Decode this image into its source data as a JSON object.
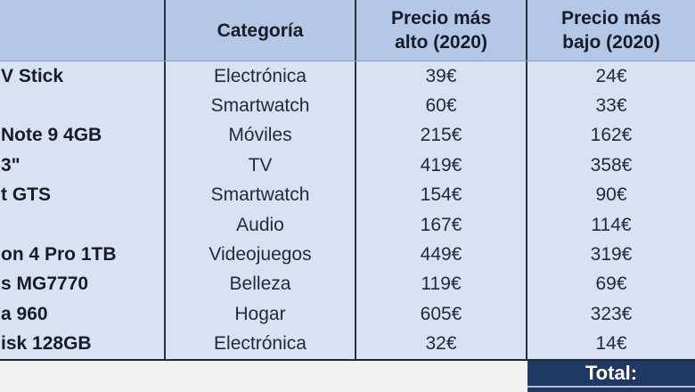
{
  "page": {
    "background": "#f2f1ef"
  },
  "table": {
    "header": {
      "product": "",
      "category": "Categoría",
      "high_line1": "Precio más",
      "high_line2": "alto (2020)",
      "low_line1": "Precio más",
      "low_line2": "bajo (2020)"
    },
    "rows": [
      {
        "name": "V Stick",
        "category": "Electrónica",
        "high": "39€",
        "low": "24€"
      },
      {
        "name": "",
        "category": "Smartwatch",
        "high": "60€",
        "low": "33€"
      },
      {
        "name": "Note 9 4GB",
        "category": "Móviles",
        "high": "215€",
        "low": "162€"
      },
      {
        "name": "3\"",
        "category": "TV",
        "high": "419€",
        "low": "358€"
      },
      {
        "name": "t GTS",
        "category": "Smartwatch",
        "high": "154€",
        "low": "90€"
      },
      {
        "name": "",
        "category": "Audio",
        "high": "167€",
        "low": "114€"
      },
      {
        "name": "on 4 Pro 1TB",
        "category": "Videojuegos",
        "high": "449€",
        "low": "319€"
      },
      {
        "name": "s MG7770",
        "category": "Belleza",
        "high": "119€",
        "low": "69€"
      },
      {
        "name": "a 960",
        "category": "Hogar",
        "high": "605€",
        "low": "323€"
      },
      {
        "name": "isk 128GB",
        "category": "Electrónica",
        "high": "32€",
        "low": "14€"
      }
    ],
    "footer": {
      "total_label": "Total:"
    }
  },
  "colors": {
    "header_bg": "#b4c7e7",
    "row_bg": "#d9e2f3",
    "grid_border": "#273043",
    "table_bottom_border": "#1e2535",
    "total_bg": "#1f3864",
    "total_text": "#ffffff",
    "body_text": "#232a3a",
    "page_bg": "#f2f1ef"
  },
  "chart_data": {
    "type": "table",
    "title": "",
    "columns": [
      "",
      "Categoría",
      "Precio más alto (2020)",
      "Precio más bajo (2020)"
    ],
    "rows": [
      [
        "V Stick",
        "Electrónica",
        39,
        24
      ],
      [
        "",
        "Smartwatch",
        60,
        33
      ],
      [
        "Note 9 4GB",
        "Móviles",
        215,
        162
      ],
      [
        "3\"",
        "TV",
        419,
        358
      ],
      [
        "t GTS",
        "Smartwatch",
        154,
        90
      ],
      [
        "",
        "Audio",
        167,
        114
      ],
      [
        "on 4 Pro 1TB",
        "Videojuegos",
        449,
        319
      ],
      [
        "s MG7770",
        "Belleza",
        119,
        69
      ],
      [
        "a 960",
        "Hogar",
        605,
        323
      ],
      [
        "isk 128GB",
        "Electrónica",
        32,
        14
      ]
    ],
    "footer_label": "Total:",
    "currency": "€",
    "notes": "left product-name column and right edge cropped in screenshot"
  }
}
